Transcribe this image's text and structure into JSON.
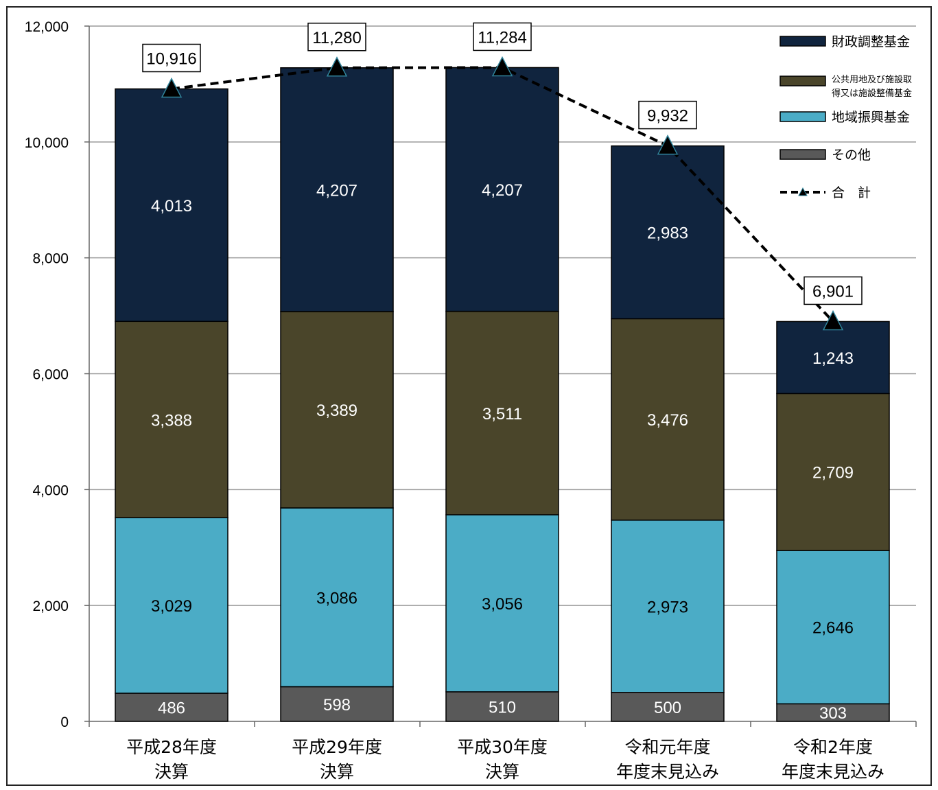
{
  "chart_data": {
    "type": "bar",
    "stacked": true,
    "categories": [
      [
        "平成28年度",
        "決算"
      ],
      [
        "平成29年度",
        "決算"
      ],
      [
        "平成30年度",
        "決算"
      ],
      [
        "令和元年度",
        "年度末見込み"
      ],
      [
        "令和2年度",
        "年度末見込み"
      ]
    ],
    "ylim": [
      0,
      12000
    ],
    "yticks": [
      "0",
      "2,000",
      "4,000",
      "6,000",
      "8,000",
      "10,000",
      "12,000"
    ],
    "ytick_values": [
      0,
      2000,
      4000,
      6000,
      8000,
      10000,
      12000
    ],
    "grid": true,
    "legend_position": "top-right",
    "series": [
      {
        "name": "その他",
        "color": "#595959",
        "text_color": "#ffffff",
        "values": [
          486,
          598,
          510,
          500,
          303
        ],
        "labels": [
          "486",
          "598",
          "510",
          "500",
          "303"
        ]
      },
      {
        "name": "地域振興基金",
        "color": "#4BACC6",
        "text_color": "#000000",
        "values": [
          3029,
          3086,
          3056,
          2973,
          2646
        ],
        "labels": [
          "3,029",
          "3,086",
          "3,056",
          "2,973",
          "2,646"
        ]
      },
      {
        "name": "公共用地及び施設取得又は施設整備基金",
        "legend_lines": [
          "公共用地及び施設取",
          "得又は施設整備基金"
        ],
        "color": "#4A452A",
        "text_color": "#ffffff",
        "values": [
          3388,
          3389,
          3511,
          3476,
          2709
        ],
        "labels": [
          "3,388",
          "3,389",
          "3,511",
          "3,476",
          "2,709"
        ]
      },
      {
        "name": "財政調整基金",
        "color": "#10243E",
        "text_color": "#ffffff",
        "values": [
          4013,
          4207,
          4207,
          2983,
          1243
        ],
        "labels": [
          "4,013",
          "4,207",
          "4,207",
          "2,983",
          "1,243"
        ]
      }
    ],
    "total_series": {
      "name": "合　計",
      "type": "line",
      "style": "dashed",
      "marker": "triangle",
      "values": [
        10916,
        11280,
        11284,
        9932,
        6901
      ],
      "labels": [
        "10,916",
        "11,280",
        "11,284",
        "9,932",
        "6,901"
      ]
    },
    "legend_order": [
      "財政調整基金",
      "公共用地及び施設取得又は施設整備基金",
      "地域振興基金",
      "その他",
      "合　計"
    ]
  }
}
